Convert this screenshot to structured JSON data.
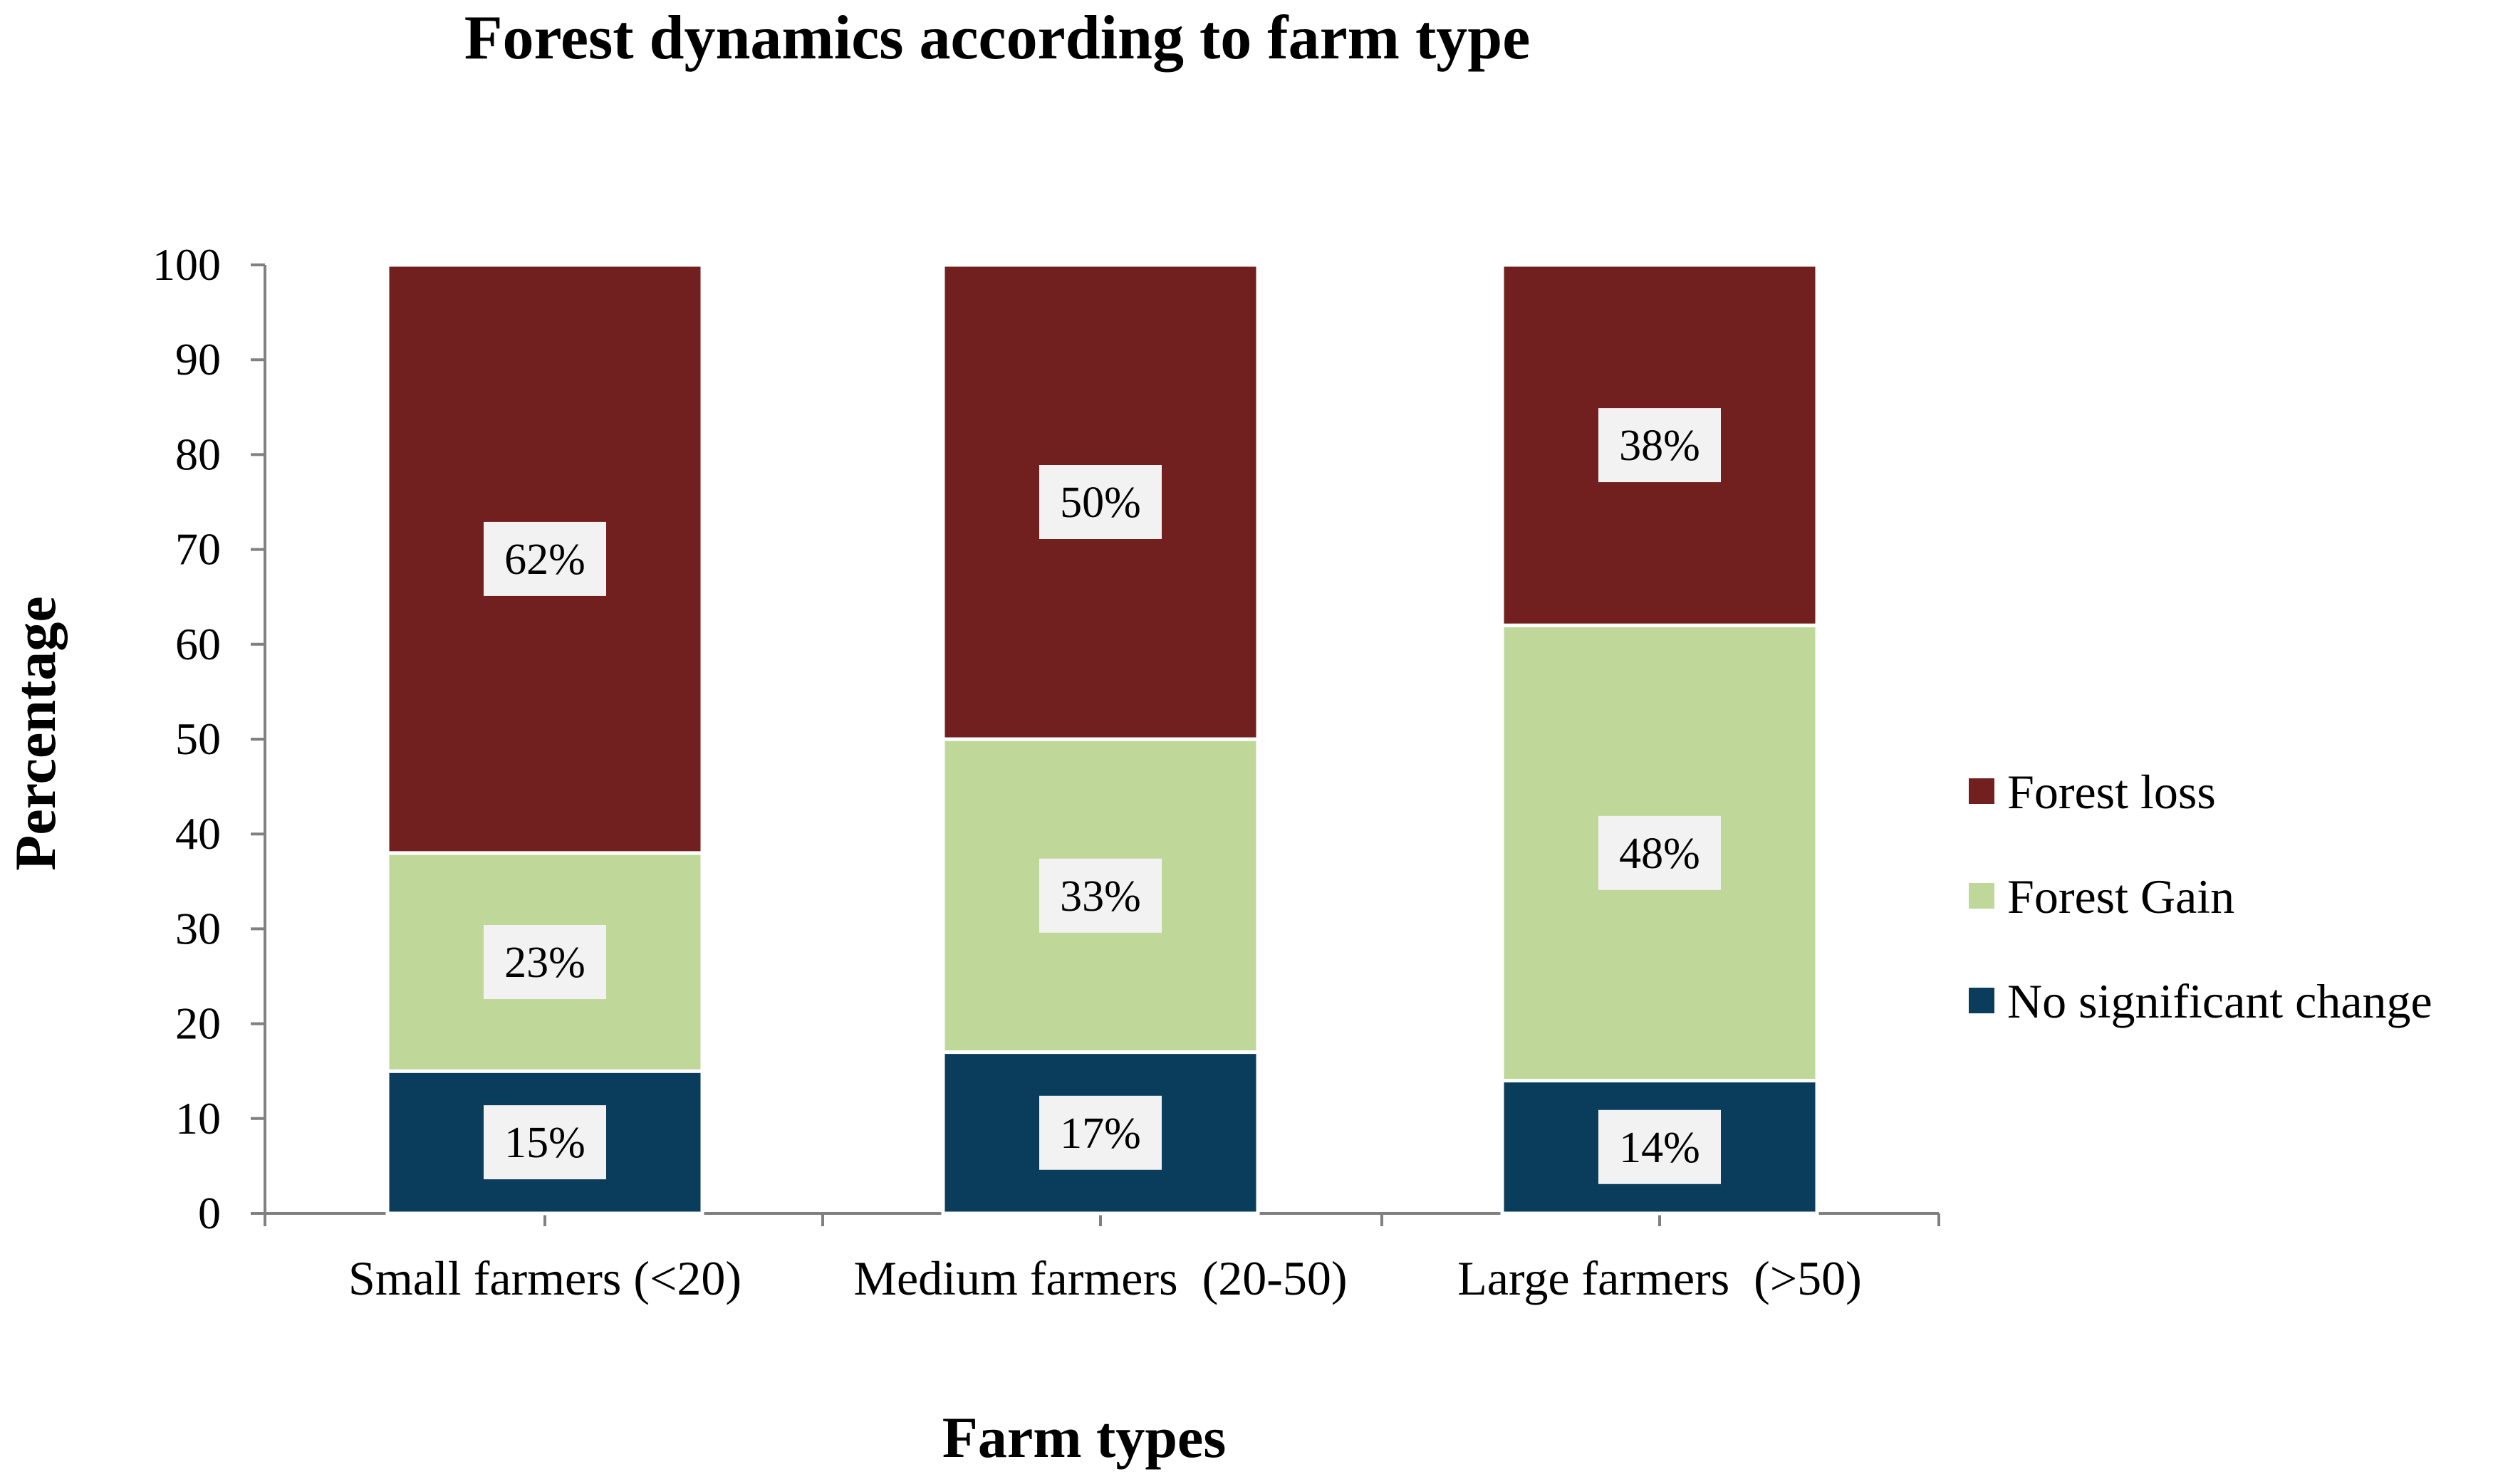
{
  "chart_data": {
    "type": "bar",
    "stacked": true,
    "title": "Forest dynamics according to farm type",
    "xlabel": "Farm types",
    "ylabel": "Percentage",
    "ylim": [
      0,
      100
    ],
    "yticks": [
      0,
      10,
      20,
      30,
      40,
      50,
      60,
      70,
      80,
      90,
      100
    ],
    "grid": false,
    "legend_position": "right",
    "categories": [
      "Small farmers (<20)",
      "Medium farmers  (20-50)",
      "Large farmers  (>50)"
    ],
    "series": [
      {
        "name": "No significant change",
        "color": "#0a3d5c",
        "values": [
          15,
          17,
          14
        ],
        "labels": [
          "15%",
          "17%",
          "14%"
        ]
      },
      {
        "name": "Forest Gain",
        "color": "#bfd89a",
        "values": [
          23,
          33,
          48
        ],
        "labels": [
          "23%",
          "33%",
          "48%"
        ]
      },
      {
        "name": "Forest loss",
        "color": "#72201f",
        "values": [
          62,
          50,
          38
        ],
        "labels": [
          "62%",
          "50%",
          "38%"
        ]
      }
    ],
    "legend_order": [
      "Forest loss",
      "Forest Gain",
      "No significant change"
    ]
  }
}
